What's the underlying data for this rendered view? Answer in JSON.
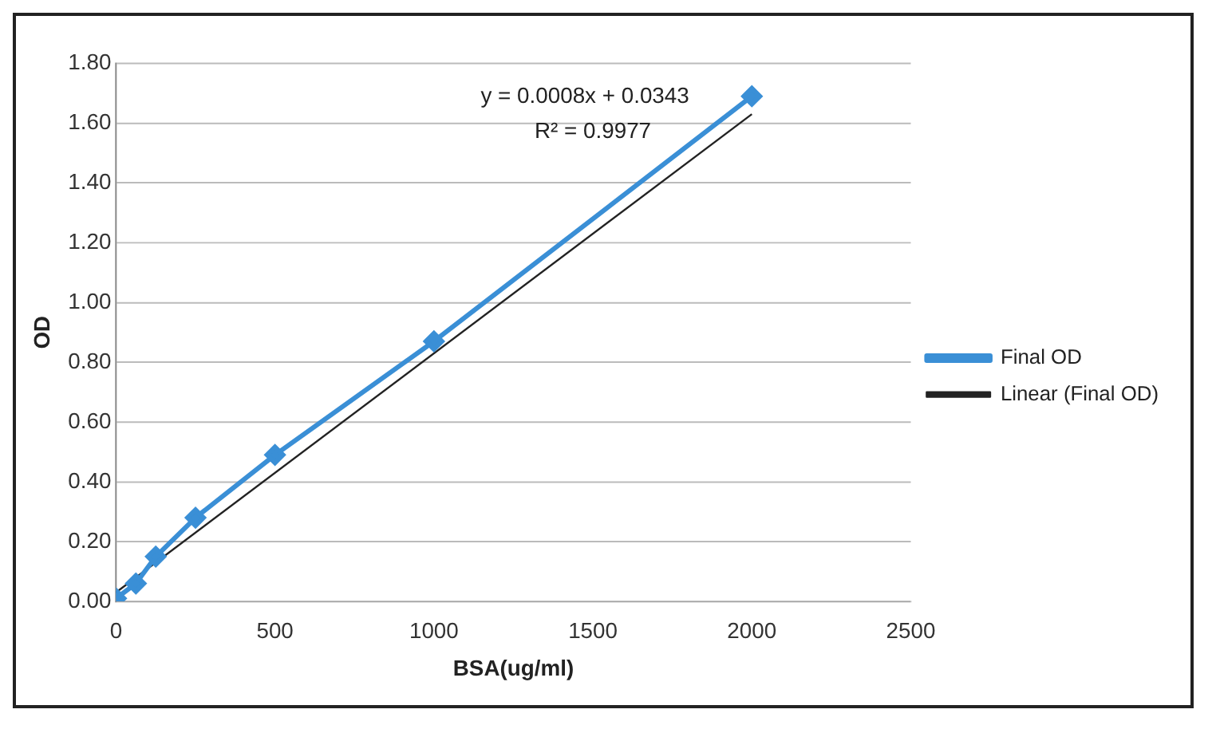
{
  "chart_data": {
    "type": "line",
    "xlabel": "BSA(ug/ml)",
    "ylabel": "OD",
    "series": [
      {
        "name": "Final OD",
        "color": "#3a8fd6",
        "x": [
          0,
          62.5,
          125,
          250,
          500,
          1000,
          2000
        ],
        "values": [
          0.01,
          0.06,
          0.15,
          0.28,
          0.49,
          0.87,
          1.69
        ],
        "marker": "diamond"
      },
      {
        "name": "Linear (Final OD)",
        "color": "#222222",
        "x": [
          0,
          2000
        ],
        "values": [
          0.03,
          1.63
        ],
        "marker": "none"
      }
    ],
    "annotations": [
      "y = 0.0008x + 0.0343",
      "R² = 0.9977"
    ],
    "xlim": [
      0,
      2500
    ],
    "xticks": [
      0,
      500,
      1000,
      1500,
      2000,
      2500
    ],
    "ylim": [
      0,
      1.8
    ],
    "yticks": [
      {
        "value": 0,
        "label": "0.00"
      },
      {
        "value": 0.2,
        "label": "0.20"
      },
      {
        "value": 0.4,
        "label": "0.40"
      },
      {
        "value": 0.6,
        "label": "0.60"
      },
      {
        "value": 0.8,
        "label": "0.80"
      },
      {
        "value": 1,
        "label": "1.00"
      },
      {
        "value": 1.2,
        "label": "1.20"
      },
      {
        "value": 1.4,
        "label": "1.40"
      },
      {
        "value": 1.6,
        "label": "1.60"
      },
      {
        "value": 1.8,
        "label": "1.80"
      }
    ],
    "grid": "y",
    "legend": "right"
  }
}
